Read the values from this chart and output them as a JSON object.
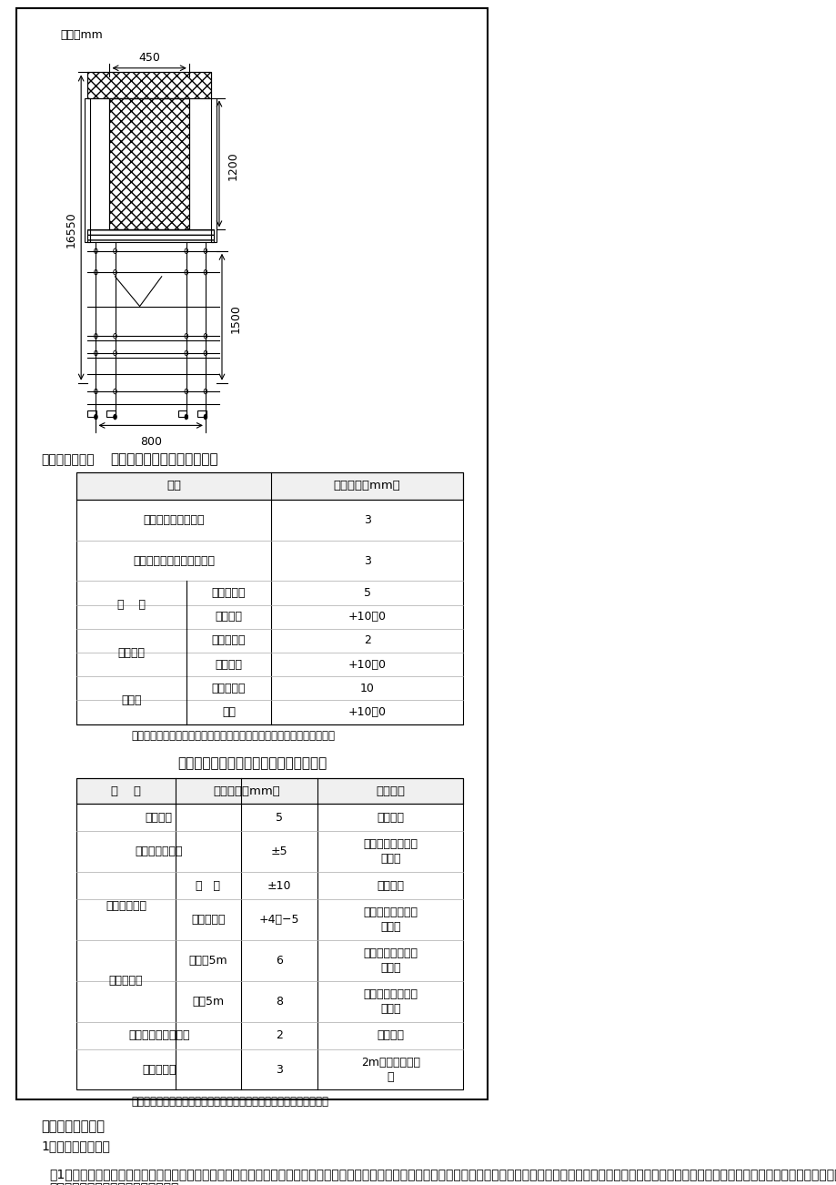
{
  "page_bg": "#ffffff",
  "border_color": "#000000",
  "unit_label": "单位：mm",
  "dim_450": "450",
  "dim_1200": "1200",
  "dim_16550": "16550",
  "dim_1500": "1500",
  "dim_800": "800",
  "section_6_title": "六、质量要求：",
  "table1_title": "预埋件和预留孔洞的允许偏差",
  "table1_headers": [
    "项目",
    "允许偏差（mm）"
  ],
  "table1_rows": [
    [
      "预埋钢板中心线位置",
      "",
      "3"
    ],
    [
      "预埋管、预留孔中心线位置",
      "",
      "3"
    ],
    [
      "插    筋",
      "中心线位置",
      "5"
    ],
    [
      "插    筋",
      "外露长度",
      "+10，0"
    ],
    [
      "预埋螺栓",
      "中心线位置",
      "2"
    ],
    [
      "预埋螺栓",
      "外露长度",
      "+10，0"
    ],
    [
      "预留洞",
      "中心线位置",
      "10"
    ],
    [
      "预留洞",
      "尺寸",
      "+10，0"
    ]
  ],
  "table1_note": "注：检查中心线位置时，应沿纵、横两个方向量测，并取其中的较大值。",
  "table2_title": "现浇结构模板安装的允许偏差及检验方法",
  "table2_headers": [
    "项    目",
    "允许偏差（mm）",
    "检验方法"
  ],
  "table2_rows": [
    [
      "轴线位置",
      "",
      "5",
      "钢尺检查"
    ],
    [
      "底模上表面标高",
      "",
      "±5",
      "水准仪或拉线、钢\n尺检查"
    ],
    [
      "截面内部尺寸",
      "基   础",
      "±10",
      "钢尺检查"
    ],
    [
      "截面内部尺寸",
      "柱、墙、梁",
      "+4，−5",
      "经纬仪或吊线、钢\n尺检查"
    ],
    [
      "层高垂直度",
      "不大于5m",
      "6",
      "经纬仪或吊线、钢\n尺检查"
    ],
    [
      "层高垂直度",
      "大于5m",
      "8",
      "经纬仪或吊线、钢\n尺检查"
    ],
    [
      "相邻两板表面高低差",
      "",
      "2",
      "钢尺检查"
    ],
    [
      "表面平整度",
      "",
      "3",
      "2m靠尺和塞尺检\n查"
    ]
  ],
  "table2_note": "注：检查轴线位置时，应沿纵、横两个方向量测，并取其中的较大值。",
  "section_7_title": "七、质量保证措施",
  "subsection_1": "1、把好施工质量关",
  "para_1": "（1）认真仔细地学习和阅读施工图纸，吃透和领会施工图的要求，及时提出不明之处，遇工程变更或其他技术措施，均以施工联系单和签证手续为依据，施工前认真做好各项技术交底工作，严格按国家颁行《混凝土结构工程施工质量验收规范》GB50204-2002 和其它有关规定施工和验收，并随时接"
}
